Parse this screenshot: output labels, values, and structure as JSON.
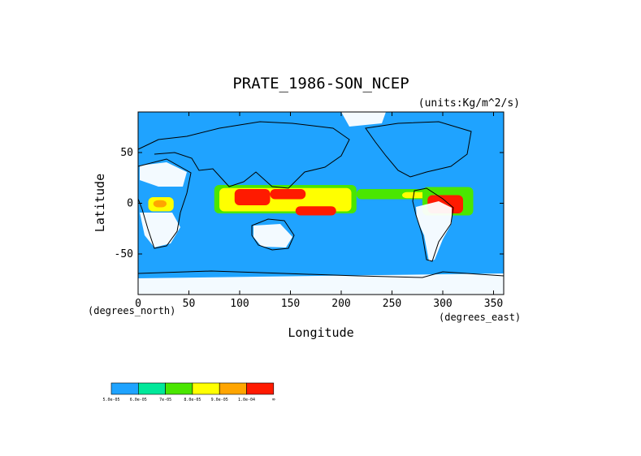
{
  "chart_data": {
    "type": "heatmap",
    "title": "PRATE_1986-SON_NCEP",
    "units": "(units:Kg/m^2/s)",
    "xlabel": "Longitude",
    "ylabel": "Latitude",
    "x_unit_note": "(degrees_east)",
    "y_unit_note": "(degrees_north)",
    "xlim": [
      0,
      360
    ],
    "ylim": [
      -90,
      90
    ],
    "x_ticks": [
      0,
      50,
      100,
      150,
      200,
      250,
      300,
      350
    ],
    "y_ticks": [
      -50,
      0,
      50
    ],
    "grid": false,
    "colorbar": {
      "position": "bottom-left",
      "bins": [
        {
          "lower_label": "5.0e-05",
          "color": "#1fa3ff"
        },
        {
          "lower_label": "6.0e-05",
          "color": "#00e89a"
        },
        {
          "lower_label": "7e-05",
          "color": "#4ae600"
        },
        {
          "lower_label": "8.0e-05",
          "color": "#ffff00"
        },
        {
          "lower_label": "9.0e-05",
          "color": "#ffa500"
        },
        {
          "lower_label": "1.0e-04",
          "color": "#ff1a00"
        }
      ],
      "top_label": "∞"
    },
    "regions": [
      {
        "level": 2,
        "lon": [
          75,
          215
        ],
        "lat": [
          -10,
          18
        ]
      },
      {
        "level": 3,
        "lon": [
          80,
          210
        ],
        "lat": [
          -8,
          15
        ]
      },
      {
        "level": 5,
        "lon": [
          95,
          130
        ],
        "lat": [
          -2,
          14
        ]
      },
      {
        "level": 5,
        "lon": [
          130,
          165
        ],
        "lat": [
          4,
          14
        ]
      },
      {
        "level": 5,
        "lon": [
          155,
          195
        ],
        "lat": [
          -12,
          -3
        ]
      },
      {
        "level": 2,
        "lon": [
          215,
          290
        ],
        "lat": [
          4,
          14
        ]
      },
      {
        "level": 3,
        "lon": [
          260,
          285
        ],
        "lat": [
          5,
          11
        ]
      },
      {
        "level": 2,
        "lon": [
          280,
          330
        ],
        "lat": [
          -12,
          16
        ]
      },
      {
        "level": 5,
        "lon": [
          285,
          320
        ],
        "lat": [
          -10,
          8
        ]
      },
      {
        "level": 3,
        "lon": [
          10,
          35
        ],
        "lat": [
          -8,
          6
        ]
      },
      {
        "level": 4,
        "lon": [
          15,
          28
        ],
        "lat": [
          -4,
          3
        ]
      }
    ]
  }
}
